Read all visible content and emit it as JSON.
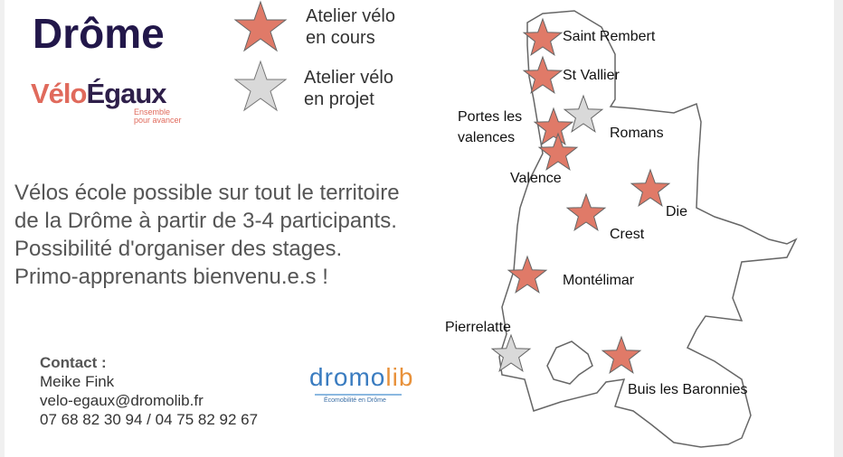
{
  "title": "Drôme",
  "logo": {
    "part1": "Vélo",
    "part2": "Égaux",
    "tagline1": "Ensemble",
    "tagline2": "pour avancer"
  },
  "legend": [
    {
      "label1": "Atelier vélo",
      "label2": "en cours",
      "color": "#e07a68"
    },
    {
      "label1": "Atelier vélo",
      "label2": "en projet",
      "color": "#d9d9d9"
    }
  ],
  "description": [
    "Vélos école possible sur tout le territoire",
    "de la Drôme à partir de 3-4 participants.",
    "Possibilité d'organiser des stages.",
    "Primo-apprenants bienvenu.e.s !"
  ],
  "contact": {
    "heading": "Contact :",
    "name": "Meike Fink",
    "email": "velo-egaux@dromolib.fr",
    "phone": "07 68 82 30 94 / 04 75 82 92 67"
  },
  "dromolib": {
    "a": "dromo",
    "b": "lib",
    "tagline": "Écomobilité en Drôme"
  },
  "cities": [
    {
      "name": "Saint Rembert",
      "status": "en cours"
    },
    {
      "name": "St Vallier",
      "status": "en cours"
    },
    {
      "name": "Portes les valences",
      "status": "en cours"
    },
    {
      "name": "Valence",
      "status": "en cours"
    },
    {
      "name": "Romans",
      "status": "en projet"
    },
    {
      "name": "Die",
      "status": "en cours"
    },
    {
      "name": "Crest",
      "status": "en cours"
    },
    {
      "name": "Montélimar",
      "status": "en cours"
    },
    {
      "name": "Pierrelatte",
      "status": "en projet"
    },
    {
      "name": "Buis les Baronnies",
      "status": "en cours"
    }
  ]
}
